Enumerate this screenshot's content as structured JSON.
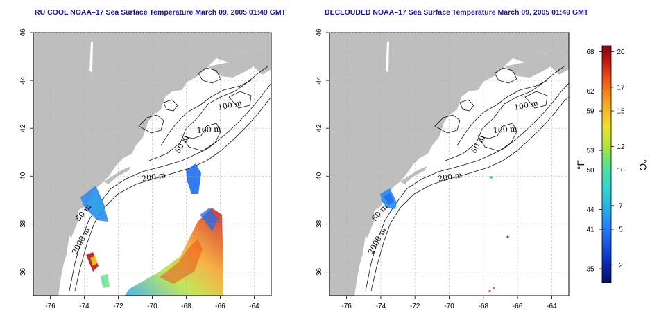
{
  "left_panel": {
    "title": "RU COOL NOAA–17 Sea Surface Temperature March 09, 2005 01:49 GMT",
    "x_ticks": [
      "-76",
      "-74",
      "-72",
      "-70",
      "-68",
      "-66",
      "-64"
    ],
    "y_ticks": [
      "36",
      "38",
      "40",
      "42",
      "44",
      "46"
    ],
    "contour_labels": [
      "100 m",
      "100 m",
      "50 m",
      "200 m",
      "50 m",
      "2000 m"
    ]
  },
  "right_panel": {
    "title": "DECLOUDED NOAA–17 Sea Surface Temperature March 09, 2005 01:49 GMT",
    "x_ticks": [
      "-76",
      "-74",
      "-72",
      "-70",
      "-68",
      "-66",
      "-64"
    ],
    "y_ticks": [
      "36",
      "38",
      "40",
      "42",
      "44",
      "46"
    ],
    "contour_labels": [
      "100 m",
      "100 m",
      "50 m",
      "200 m",
      "50 m",
      "2000 m"
    ]
  },
  "colorbar": {
    "fahrenheit_ticks": [
      "68",
      "62",
      "59",
      "53",
      "50",
      "44",
      "41",
      "35"
    ],
    "celsius_ticks": [
      "20",
      "17",
      "15",
      "12",
      "10",
      "7",
      "5",
      "2"
    ],
    "fahrenheit_unit": "°F",
    "celsius_unit": "°C",
    "celsius_range": [
      0.5,
      20.5
    ],
    "colors": [
      "#08105e",
      "#0a2fbf",
      "#1e6cf0",
      "#2aa8ee",
      "#2fd6d0",
      "#5ee08a",
      "#b6e43c",
      "#f1e02a",
      "#f7a323",
      "#ec5418",
      "#c21210",
      "#7a0a0a"
    ]
  }
}
